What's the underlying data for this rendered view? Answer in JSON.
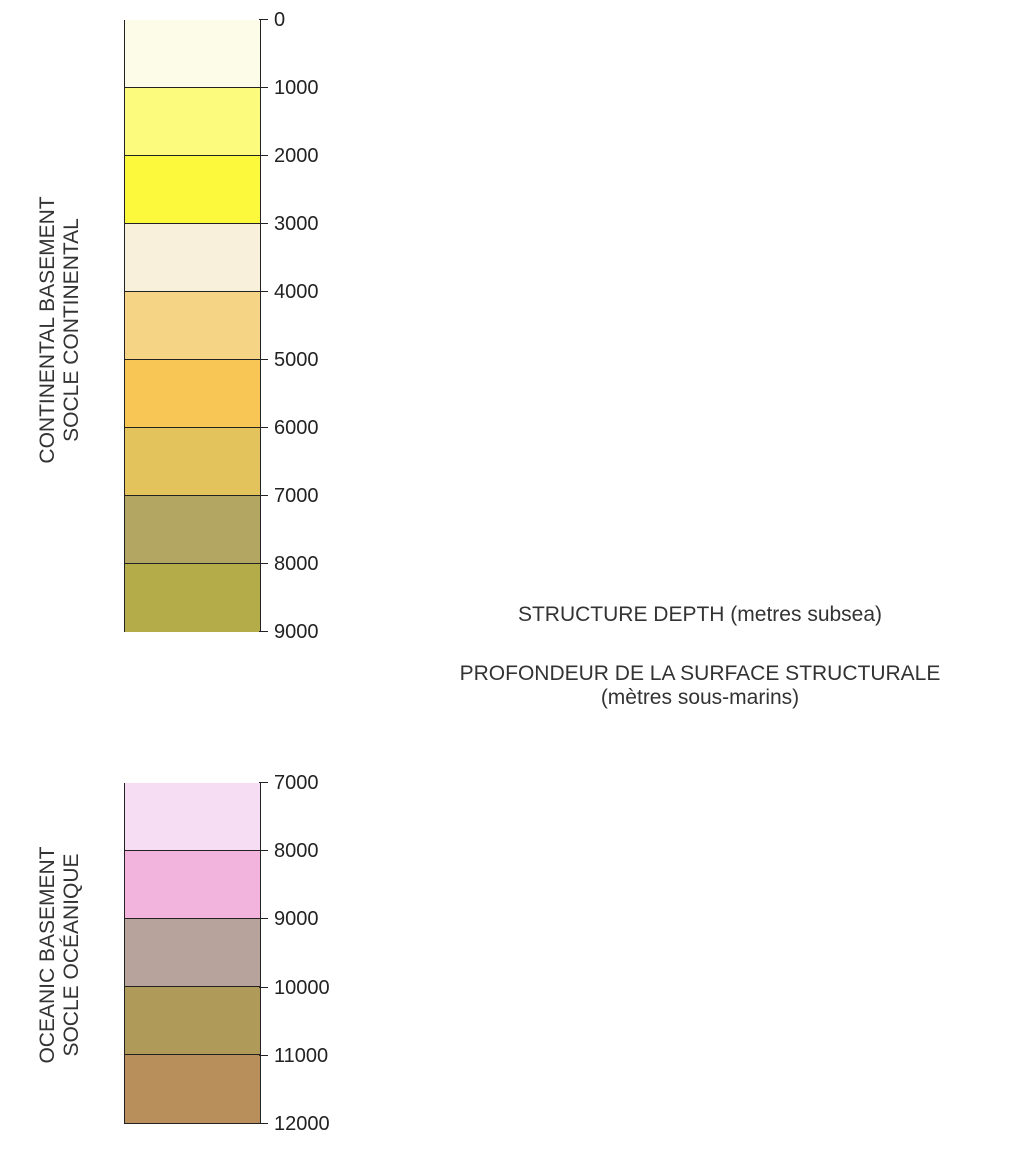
{
  "continental": {
    "label_en": "CONTINENTAL BASEMENT",
    "label_fr": "SOCLE CONTINENTAL",
    "ticks": [
      "0",
      "1000",
      "2000",
      "3000",
      "4000",
      "5000",
      "6000",
      "7000",
      "8000",
      "9000"
    ],
    "colors": [
      "#fdfce8",
      "#fdfb7e",
      "#fcf83c",
      "#f8f0da",
      "#f6d486",
      "#f8c654",
      "#e2c35c",
      "#b3a562",
      "#b4ac48"
    ]
  },
  "oceanic": {
    "label_en": "OCEANIC BASEMENT",
    "label_fr": "SOCLE OCÉANIQUE",
    "ticks": [
      "7000",
      "8000",
      "9000",
      "10000",
      "11000",
      "12000"
    ],
    "colors": [
      "#f6ddf3",
      "#f2b3dc",
      "#b7a39b",
      "#b09a5a",
      "#b88e5a"
    ]
  },
  "caption": {
    "title_en": "STRUCTURE DEPTH (metres subsea)",
    "title_fr_line1": "PROFONDEUR DE LA SURFACE STRUCTURALE",
    "title_fr_line2": "(mètres sous-marins)"
  }
}
